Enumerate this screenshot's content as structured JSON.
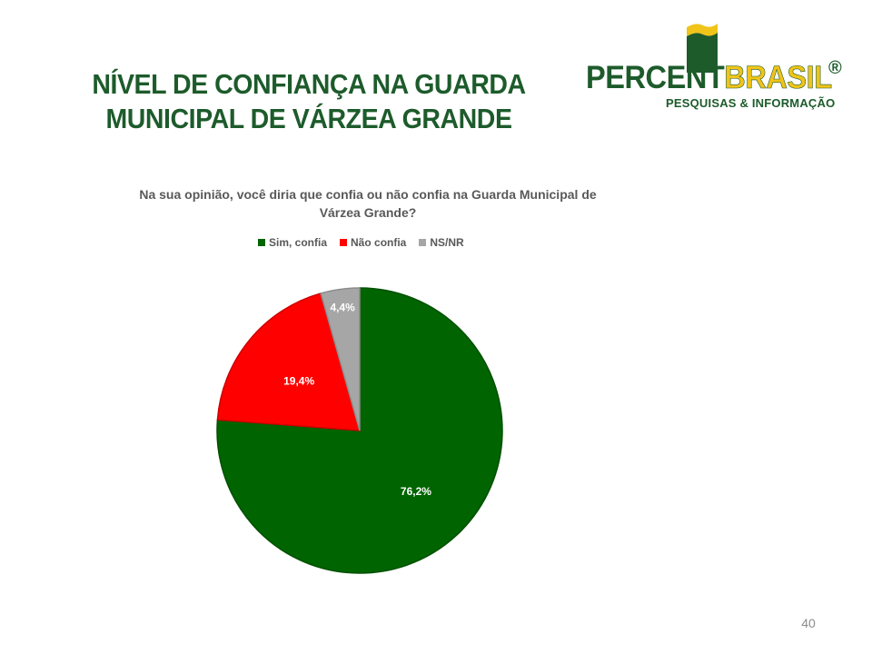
{
  "slide": {
    "title_line1": "NÍVEL DE CONFIANÇA NA GUARDA",
    "title_line2": "MUNICIPAL DE VÁRZEA GRANDE",
    "page_number": "40"
  },
  "logo": {
    "word_part1": "PERCENT",
    "word_part2": "BRASIL",
    "registered_mark": "®",
    "tagline": "PESQUISAS & INFORMAÇÃO",
    "colors": {
      "green": "#1d5b2b",
      "yellow": "#f0c419"
    }
  },
  "chart_data": {
    "type": "pie",
    "title": "Na sua opinião, você diria que confia ou não confia na Guarda Municipal de Várzea Grande?",
    "title_line1": "Na sua opinião, você diria que confia ou não confia na Guarda Municipal de",
    "title_line2": "Várzea Grande?",
    "legend_placement": "top",
    "categories": [
      "Sim, confia",
      "Não confia",
      "NS/NR"
    ],
    "values": [
      76.2,
      19.4,
      4.4
    ],
    "data_labels": [
      "76,2%",
      "19,4%",
      "4,4%"
    ],
    "colors": [
      "#006400",
      "#ff0000",
      "#a6a6a6"
    ]
  }
}
